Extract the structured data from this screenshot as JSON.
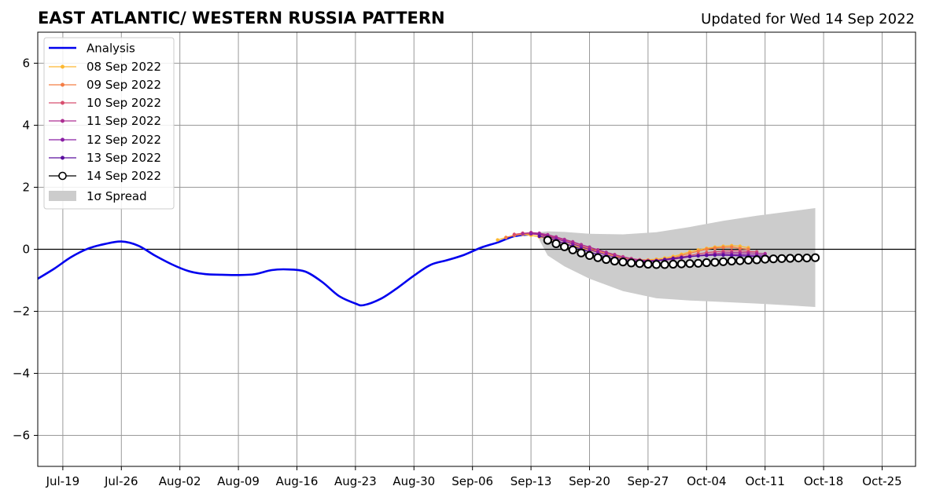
{
  "chart_data": {
    "type": "line",
    "title": "EAST ATLANTIC/ WESTERN RUSSIA PATTERN",
    "subtitle": "Updated for Wed 14 Sep 2022",
    "xlabel": "",
    "ylabel": "",
    "x_range": [
      "2022-07-16",
      "2022-10-29"
    ],
    "ylim": [
      -7,
      7
    ],
    "y_ticks": [
      -6,
      -4,
      -2,
      0,
      2,
      4,
      6
    ],
    "y_tick_labels": [
      "−6",
      "−4",
      "−2",
      "0",
      "2",
      "4",
      "6"
    ],
    "x_ticks": [
      {
        "date": "2022-07-19",
        "label": "Jul-19"
      },
      {
        "date": "2022-07-26",
        "label": "Jul-26"
      },
      {
        "date": "2022-08-02",
        "label": "Aug-02"
      },
      {
        "date": "2022-08-09",
        "label": "Aug-09"
      },
      {
        "date": "2022-08-16",
        "label": "Aug-16"
      },
      {
        "date": "2022-08-23",
        "label": "Aug-23"
      },
      {
        "date": "2022-08-30",
        "label": "Aug-30"
      },
      {
        "date": "2022-09-06",
        "label": "Sep-06"
      },
      {
        "date": "2022-09-13",
        "label": "Sep-13"
      },
      {
        "date": "2022-09-20",
        "label": "Sep-20"
      },
      {
        "date": "2022-09-27",
        "label": "Sep-27"
      },
      {
        "date": "2022-10-04",
        "label": "Oct-04"
      },
      {
        "date": "2022-10-11",
        "label": "Oct-11"
      },
      {
        "date": "2022-10-18",
        "label": "Oct-18"
      },
      {
        "date": "2022-10-25",
        "label": "Oct-25"
      }
    ],
    "grid": true,
    "zero_line": true,
    "legend_placement": "upper-left",
    "legend": {
      "analysis": "Analysis",
      "f08": "08 Sep 2022",
      "f09": "09 Sep 2022",
      "f10": "10 Sep 2022",
      "f11": "11 Sep 2022",
      "f12": "12 Sep 2022",
      "f13": "13 Sep 2022",
      "f14": "14 Sep 2022",
      "spread": "1σ Spread"
    },
    "analysis": {
      "name": "Analysis",
      "color": "#0000ee",
      "dates": [
        "2022-07-16",
        "2022-07-18",
        "2022-07-20",
        "2022-07-22",
        "2022-07-24",
        "2022-07-26",
        "2022-07-28",
        "2022-07-30",
        "2022-08-01",
        "2022-08-03",
        "2022-08-05",
        "2022-08-07",
        "2022-08-09",
        "2022-08-11",
        "2022-08-13",
        "2022-08-15",
        "2022-08-17",
        "2022-08-19",
        "2022-08-21",
        "2022-08-23",
        "2022-08-24",
        "2022-08-26",
        "2022-08-28",
        "2022-08-30",
        "2022-09-01",
        "2022-09-03",
        "2022-09-05",
        "2022-09-07",
        "2022-09-09",
        "2022-09-11",
        "2022-09-13"
      ],
      "values": [
        -0.95,
        -0.62,
        -0.25,
        0.02,
        0.17,
        0.25,
        0.12,
        -0.2,
        -0.48,
        -0.7,
        -0.8,
        -0.82,
        -0.83,
        -0.8,
        -0.67,
        -0.65,
        -0.72,
        -1.05,
        -1.5,
        -1.75,
        -1.8,
        -1.6,
        -1.25,
        -0.85,
        -0.5,
        -0.35,
        -0.18,
        0.05,
        0.22,
        0.42,
        0.48
      ]
    },
    "forecasts": [
      {
        "name": "08 Sep 2022",
        "color": "#fdb831",
        "start": "2022-09-09",
        "values": [
          0.3,
          0.38,
          0.45,
          0.48,
          0.45,
          0.4,
          0.34,
          0.27,
          0.2,
          0.12,
          0.05,
          -0.03,
          -0.1,
          -0.17,
          -0.23,
          -0.28,
          -0.32,
          -0.34,
          -0.34,
          -0.32,
          -0.28,
          -0.23,
          -0.16,
          -0.08,
          -0.02,
          0.03,
          0.07,
          0.1,
          0.12,
          0.1,
          0.05
        ]
      },
      {
        "name": "09 Sep 2022",
        "color": "#f47d45",
        "start": "2022-09-10",
        "values": [
          0.38,
          0.45,
          0.5,
          0.5,
          0.46,
          0.4,
          0.33,
          0.26,
          0.18,
          0.1,
          0.02,
          -0.06,
          -0.13,
          -0.2,
          -0.26,
          -0.31,
          -0.34,
          -0.36,
          -0.35,
          -0.32,
          -0.27,
          -0.2,
          -0.13,
          -0.06,
          0.0,
          0.04,
          0.06,
          0.07,
          0.03,
          0.0
        ]
      },
      {
        "name": "10 Sep 2022",
        "color": "#d84f6f",
        "start": "2022-09-11",
        "values": [
          0.48,
          0.52,
          0.53,
          0.5,
          0.44,
          0.37,
          0.3,
          0.22,
          0.14,
          0.06,
          -0.02,
          -0.1,
          -0.17,
          -0.24,
          -0.3,
          -0.34,
          -0.36,
          -0.36,
          -0.34,
          -0.3,
          -0.25,
          -0.2,
          -0.15,
          -0.11,
          -0.08,
          -0.06,
          -0.05,
          -0.05,
          -0.07,
          -0.08
        ]
      },
      {
        "name": "11 Sep 2022",
        "color": "#ad2f92",
        "start": "2022-09-12",
        "values": [
          0.5,
          0.54,
          0.52,
          0.47,
          0.4,
          0.32,
          0.24,
          0.15,
          0.07,
          -0.02,
          -0.1,
          -0.18,
          -0.25,
          -0.31,
          -0.35,
          -0.37,
          -0.37,
          -0.35,
          -0.32,
          -0.28,
          -0.24,
          -0.2,
          -0.17,
          -0.14,
          -0.12,
          -0.11,
          -0.11,
          -0.12,
          -0.13,
          -0.14
        ]
      },
      {
        "name": "12 Sep 2022",
        "color": "#8a1ea5",
        "start": "2022-09-13",
        "values": [
          0.5,
          0.48,
          0.42,
          0.34,
          0.26,
          0.17,
          0.08,
          -0.01,
          -0.1,
          -0.18,
          -0.25,
          -0.31,
          -0.36,
          -0.38,
          -0.39,
          -0.37,
          -0.34,
          -0.3,
          -0.27,
          -0.24,
          -0.21,
          -0.19,
          -0.18,
          -0.17,
          -0.17,
          -0.17,
          -0.18,
          -0.19,
          -0.19
        ]
      },
      {
        "name": "13 Sep 2022",
        "color": "#5a0e9e",
        "start": "2022-09-14",
        "values": [
          0.42,
          0.36,
          0.28,
          0.19,
          0.1,
          0.01,
          -0.08,
          -0.17,
          -0.25,
          -0.32,
          -0.37,
          -0.4,
          -0.41,
          -0.4,
          -0.37,
          -0.33,
          -0.29,
          -0.26,
          -0.23,
          -0.21,
          -0.2,
          -0.19,
          -0.19,
          -0.2,
          -0.21,
          -0.22,
          -0.23,
          -0.24,
          -0.25
        ]
      },
      {
        "name": "14 Sep 2022",
        "color": "#000000",
        "marker": "hollow-circle",
        "start": "2022-09-15",
        "values": [
          0.29,
          0.18,
          0.08,
          -0.02,
          -0.12,
          -0.2,
          -0.27,
          -0.33,
          -0.38,
          -0.41,
          -0.44,
          -0.46,
          -0.48,
          -0.49,
          -0.49,
          -0.48,
          -0.47,
          -0.46,
          -0.45,
          -0.43,
          -0.42,
          -0.4,
          -0.38,
          -0.37,
          -0.35,
          -0.34,
          -0.32,
          -0.31,
          -0.3,
          -0.29,
          -0.28,
          -0.28,
          -0.27
        ]
      }
    ],
    "spread": {
      "name": "1σ Spread",
      "color": "#cccccc",
      "dates": [
        "2022-09-14",
        "2022-09-15",
        "2022-09-17",
        "2022-09-20",
        "2022-09-24",
        "2022-09-28",
        "2022-10-02",
        "2022-10-06",
        "2022-10-10",
        "2022-10-14",
        "2022-10-17"
      ],
      "upper": [
        0.55,
        0.58,
        0.56,
        0.5,
        0.48,
        0.55,
        0.72,
        0.92,
        1.08,
        1.22,
        1.33
      ],
      "lower": [
        0.3,
        -0.2,
        -0.55,
        -0.95,
        -1.35,
        -1.58,
        -1.65,
        -1.7,
        -1.75,
        -1.81,
        -1.86
      ]
    }
  }
}
